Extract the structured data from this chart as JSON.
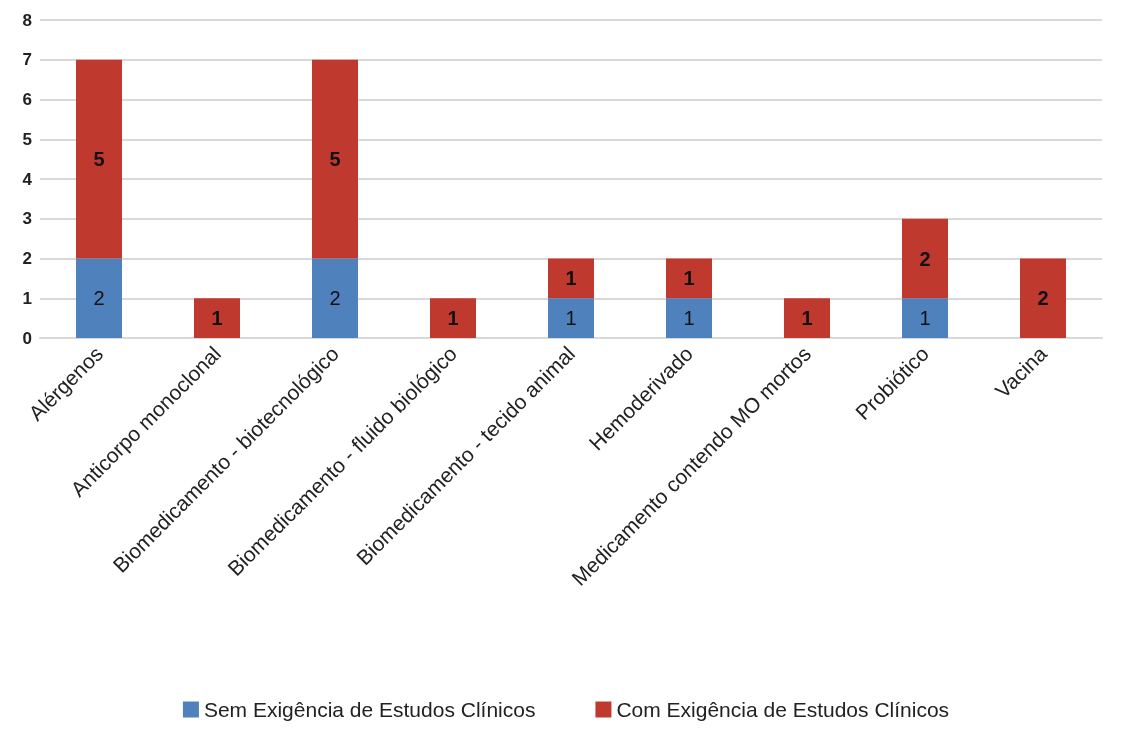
{
  "chart_data": {
    "type": "bar",
    "stacked": true,
    "categories": [
      "Alérgenos",
      "Anticorpo monoclonal",
      "Biomedicamento - biotecnológico",
      "Biomedicamento - fluido biológico",
      "Biomedicamento - tecido animal",
      "Hemoderivado",
      "Medicamento contendo MO mortos",
      "Probiótico",
      "Vacina"
    ],
    "series": [
      {
        "name": "Sem Exigência de Estudos Clínicos",
        "color": "#4f81bd",
        "values": [
          2,
          null,
          2,
          null,
          1,
          1,
          null,
          1,
          null
        ]
      },
      {
        "name": "Com Exigência de Estudos Clínicos",
        "color": "#c0392f",
        "values": [
          5,
          1,
          5,
          1,
          1,
          1,
          1,
          2,
          2
        ]
      }
    ],
    "ylim": [
      0,
      8
    ],
    "yticks": [
      0,
      1,
      2,
      3,
      4,
      5,
      6,
      7,
      8
    ],
    "grid": "y",
    "legend": "bottom",
    "data_labels": true
  }
}
